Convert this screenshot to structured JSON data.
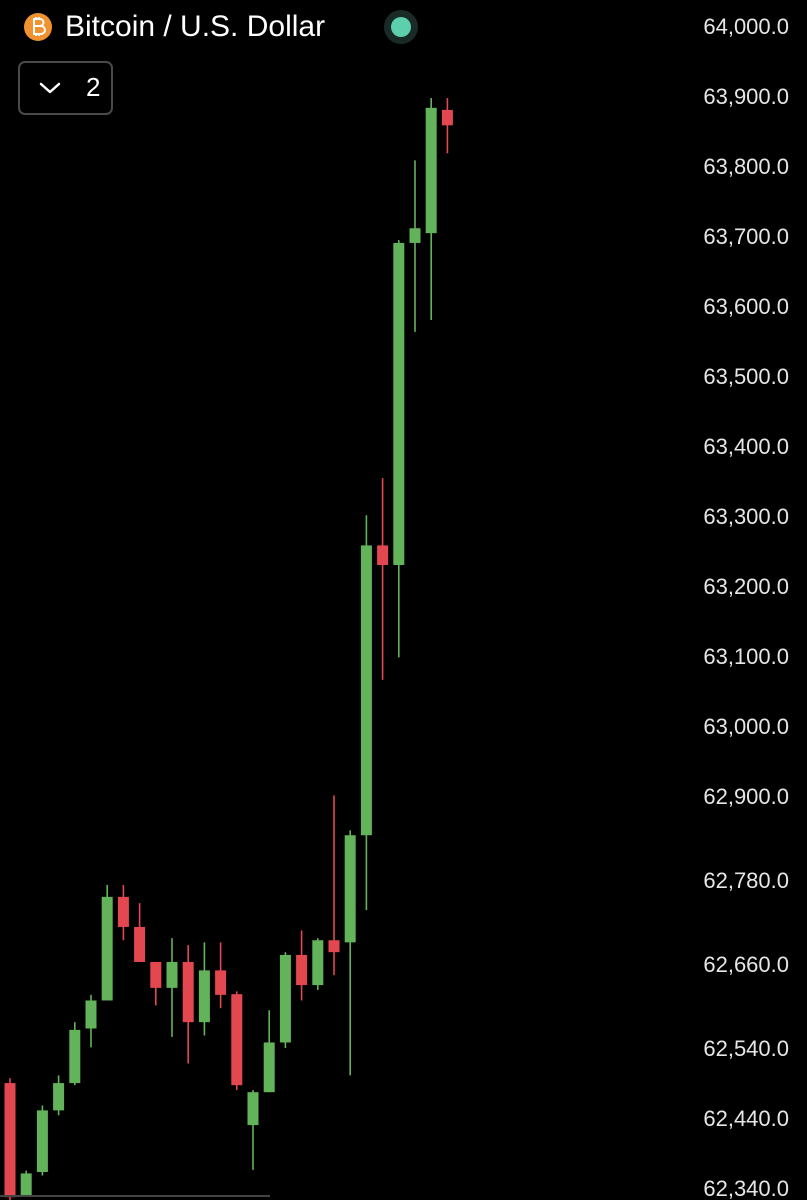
{
  "chart_data": {
    "type": "candlestick",
    "title": "Bitcoin / U.S. Dollar",
    "collapsed_count": 2,
    "up_color": "#62b35a",
    "down_color": "#e3474f",
    "open": [
      62493,
      62333,
      62366,
      62454,
      62493,
      62571,
      62611,
      62759,
      62716,
      62666,
      62629,
      62666,
      62580,
      62654,
      62620,
      62433,
      62480,
      62551,
      62676,
      62633,
      62697,
      62694,
      62847,
      63261,
      63233,
      63693,
      63707,
      63883
    ],
    "high": [
      62500,
      62368,
      62461,
      62504,
      62580,
      62619,
      62776,
      62776,
      62750,
      62666,
      62700,
      62690,
      62694,
      62694,
      62624,
      62483,
      62597,
      62680,
      62711,
      62700,
      62904,
      62854,
      63304,
      63357,
      63697,
      63811,
      63900,
      63900
    ],
    "low": [
      62326,
      62333,
      62361,
      62447,
      62490,
      62544,
      62611,
      62697,
      62666,
      62604,
      62559,
      62521,
      62561,
      62600,
      62483,
      62369,
      62480,
      62543,
      62611,
      62626,
      62647,
      62504,
      62740,
      63069,
      63101,
      63566,
      63583,
      63821
    ],
    "close": [
      62330,
      62364,
      62454,
      62493,
      62569,
      62611,
      62759,
      62716,
      62666,
      62629,
      62666,
      62580,
      62654,
      62619,
      62490,
      62480,
      62551,
      62676,
      62633,
      62697,
      62680,
      62847,
      63261,
      63233,
      63693,
      63714,
      63886,
      63861
    ],
    "ylim": [
      62326,
      64040
    ],
    "yticks": [
      {
        "value": 64000,
        "label": "64,000.0"
      },
      {
        "value": 63900,
        "label": "63,900.0"
      },
      {
        "value": 63800,
        "label": "63,800.0"
      },
      {
        "value": 63700,
        "label": "63,700.0"
      },
      {
        "value": 63600,
        "label": "63,600.0"
      },
      {
        "value": 63500,
        "label": "63,500.0"
      },
      {
        "value": 63400,
        "label": "63,400.0"
      },
      {
        "value": 63300,
        "label": "63,300.0"
      },
      {
        "value": 63200,
        "label": "63,200.0"
      },
      {
        "value": 63100,
        "label": "63,100.0"
      },
      {
        "value": 63000,
        "label": "63,000.0"
      },
      {
        "value": 62900,
        "label": "62,900.0"
      },
      {
        "value": 62780,
        "label": "62,780.0"
      },
      {
        "value": 62660,
        "label": "62,660.0"
      },
      {
        "value": 62540,
        "label": "62,540.0"
      },
      {
        "value": 62440,
        "label": "62,440.0"
      },
      {
        "value": 62340,
        "label": "62,340.0"
      }
    ],
    "grid": false
  }
}
